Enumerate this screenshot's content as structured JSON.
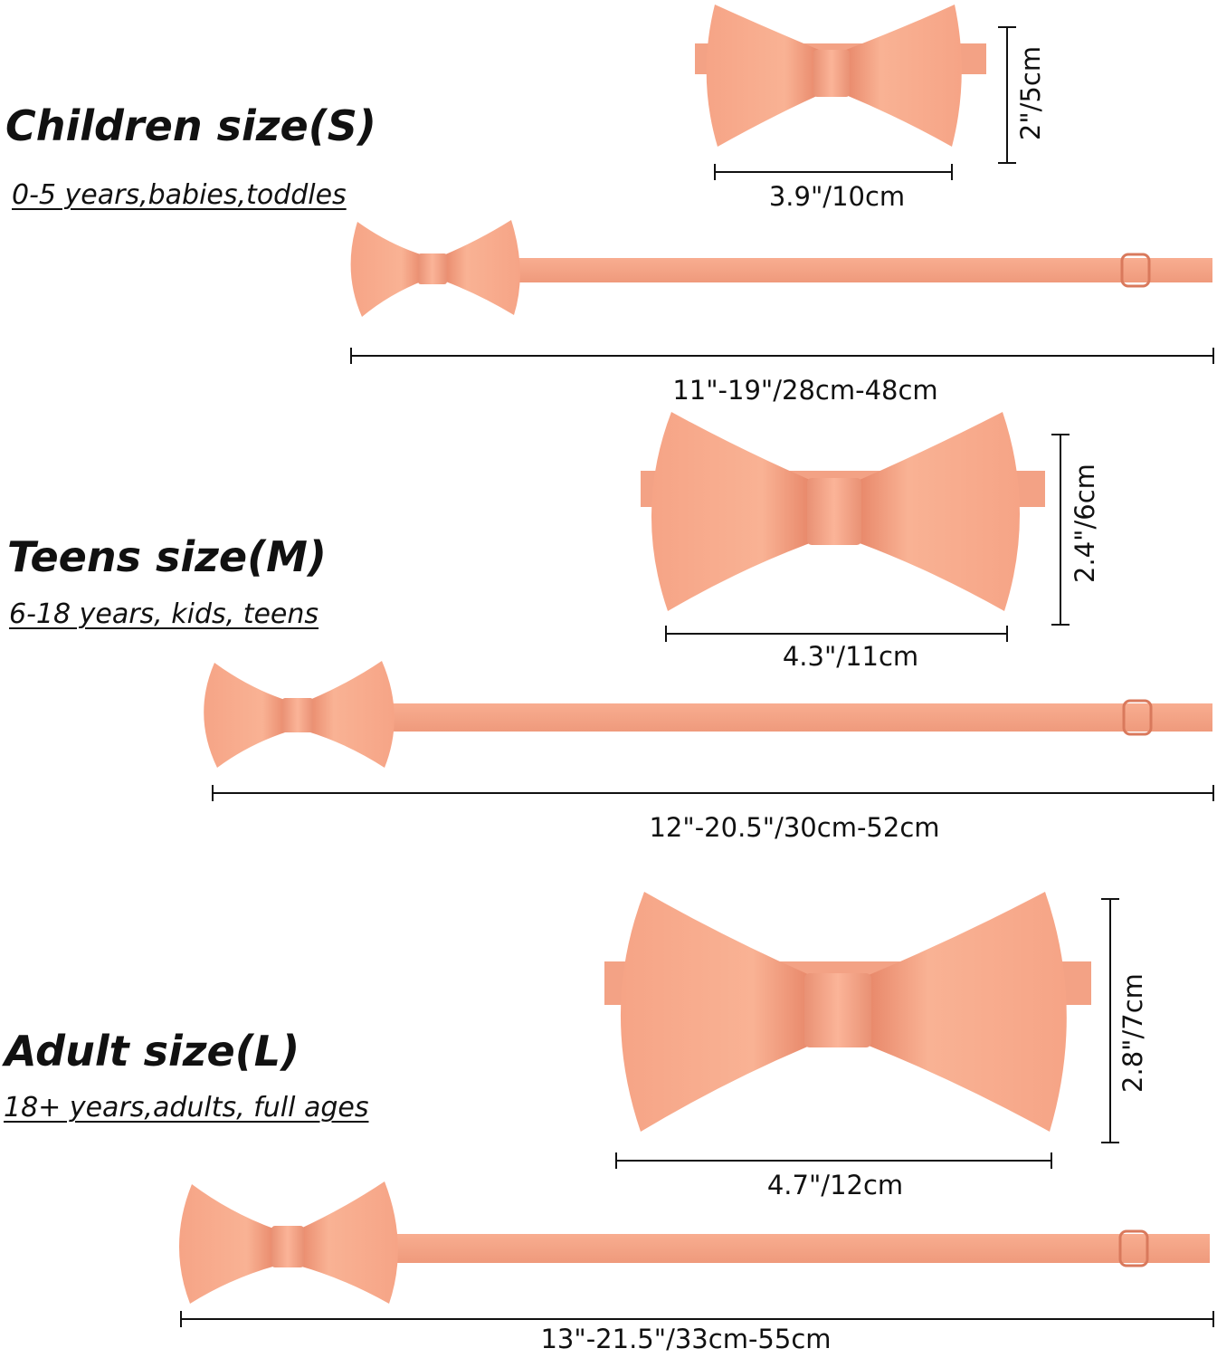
{
  "colors": {
    "fabric": "#f5a184",
    "fabric_light": "#fbb69c",
    "fabric_dark": "#e58a6c",
    "line": "#111111"
  },
  "sections": [
    {
      "title": "Children size(S)",
      "subtitle": "0-5 years,babies,toddles",
      "width_label": "3.9\"/10cm",
      "height_label": "2\"/5cm",
      "strap_label": "11\"-19\"/28cm-48cm"
    },
    {
      "title": "Teens size(M)",
      "subtitle": "6-18 years, kids, teens",
      "width_label": "4.3\"/11cm",
      "height_label": "2.4\"/6cm",
      "strap_label": "12\"-20.5\"/30cm-52cm"
    },
    {
      "title": "Adult size(L)",
      "subtitle": "18+ years,adults, full ages",
      "width_label": "4.7\"/12cm",
      "height_label": "2.8\"/7cm",
      "strap_label": "13\"-21.5\"/33cm-55cm"
    }
  ]
}
